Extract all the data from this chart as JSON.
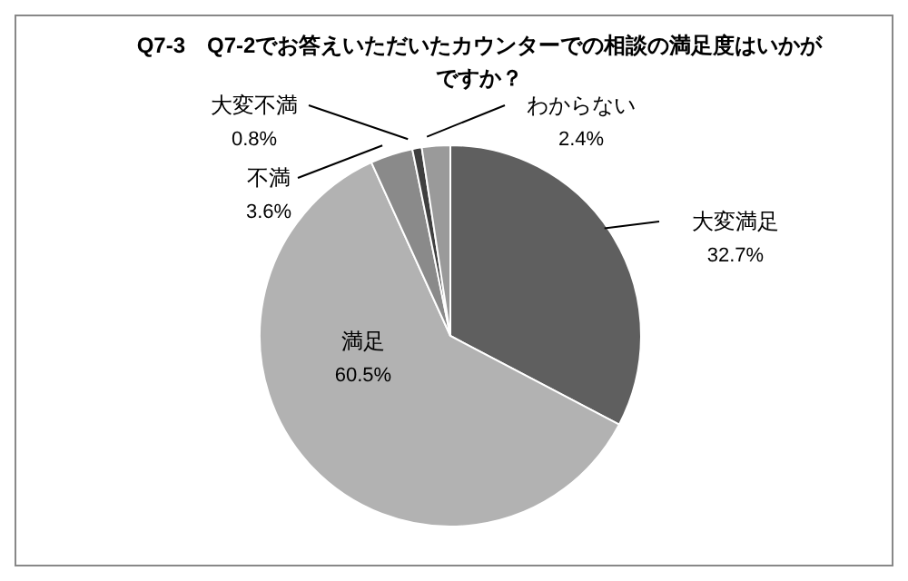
{
  "chart_data": {
    "type": "pie",
    "title": "Q7-3　Q7-2でお答えいただいたカウンターでの相談の満足度はいかがですか？",
    "categories": [
      "大変満足",
      "満足",
      "不満",
      "大変不満",
      "わからない"
    ],
    "values": [
      32.7,
      60.5,
      3.6,
      0.8,
      2.4
    ],
    "colors": [
      "#5f5f5f",
      "#b2b2b2",
      "#8a8a8a",
      "#3f3f3f",
      "#9a9a9a"
    ],
    "value_labels": [
      "32.7%",
      "60.5%",
      "3.6%",
      "0.8%",
      "2.4%"
    ],
    "legend": false
  }
}
